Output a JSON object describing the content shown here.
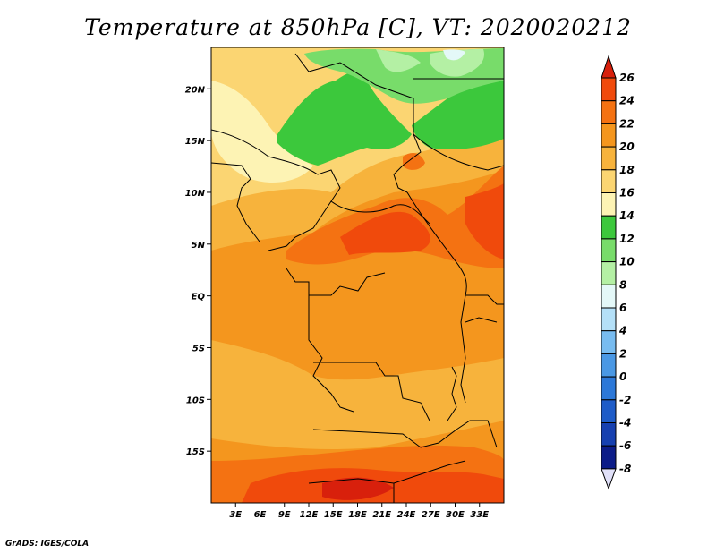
{
  "title": "Temperature at 850hPa [C], VT: 2020020212",
  "credit": "GrADS: IGES/COLA",
  "map": {
    "lon_range": [
      0,
      36
    ],
    "lat_range": [
      -20,
      24
    ],
    "lat_ticks": [
      {
        "value": 20,
        "label": "20N"
      },
      {
        "value": 15,
        "label": "15N"
      },
      {
        "value": 10,
        "label": "10N"
      },
      {
        "value": 5,
        "label": "5N"
      },
      {
        "value": 0,
        "label": "EQ"
      },
      {
        "value": -5,
        "label": "5S"
      },
      {
        "value": -10,
        "label": "10S"
      },
      {
        "value": -15,
        "label": "15S"
      }
    ],
    "lon_ticks": [
      {
        "value": 3,
        "label": "3E"
      },
      {
        "value": 6,
        "label": "6E"
      },
      {
        "value": 9,
        "label": "9E"
      },
      {
        "value": 12,
        "label": "12E"
      },
      {
        "value": 15,
        "label": "15E"
      },
      {
        "value": 18,
        "label": "18E"
      },
      {
        "value": 21,
        "label": "21E"
      },
      {
        "value": 24,
        "label": "24E"
      },
      {
        "value": 27,
        "label": "27E"
      },
      {
        "value": 30,
        "label": "30E"
      },
      {
        "value": 33,
        "label": "33E"
      }
    ]
  },
  "colorbar": {
    "levels": [
      {
        "label": "26",
        "color": "#d8200c"
      },
      {
        "label": "24",
        "color": "#f04a0c"
      },
      {
        "label": "22",
        "color": "#f47212"
      },
      {
        "label": "20",
        "color": "#f4961e"
      },
      {
        "label": "18",
        "color": "#f7b33c"
      },
      {
        "label": "16",
        "color": "#fbd572"
      },
      {
        "label": "14",
        "color": "#fdf3b4"
      },
      {
        "label": "12",
        "color": "#3cc83c"
      },
      {
        "label": "10",
        "color": "#78dc6a"
      },
      {
        "label": "8",
        "color": "#b4f0a4"
      },
      {
        "label": "6",
        "color": "#e4f8f8"
      },
      {
        "label": "4",
        "color": "#b4e0f8"
      },
      {
        "label": "2",
        "color": "#78bcf0"
      },
      {
        "label": "0",
        "color": "#4a98e4"
      },
      {
        "label": "-2",
        "color": "#2c78d8"
      },
      {
        "label": "-4",
        "color": "#1e5cc8"
      },
      {
        "label": "-6",
        "color": "#1640b0"
      },
      {
        "label": "-8",
        "color": "#0c1c88"
      }
    ],
    "bottom_color": "#e0e0f8"
  },
  "colors": {
    "t16": "#fbd572",
    "t18": "#f7b33c",
    "t20": "#f4961e",
    "t22": "#f47212",
    "t24": "#f04a0c",
    "t26": "#d8200c",
    "t14": "#fdf3b4",
    "t12": "#3cc83c",
    "t10": "#78dc6a",
    "t8": "#b4f0a4",
    "t6": "#e4f8f8"
  }
}
